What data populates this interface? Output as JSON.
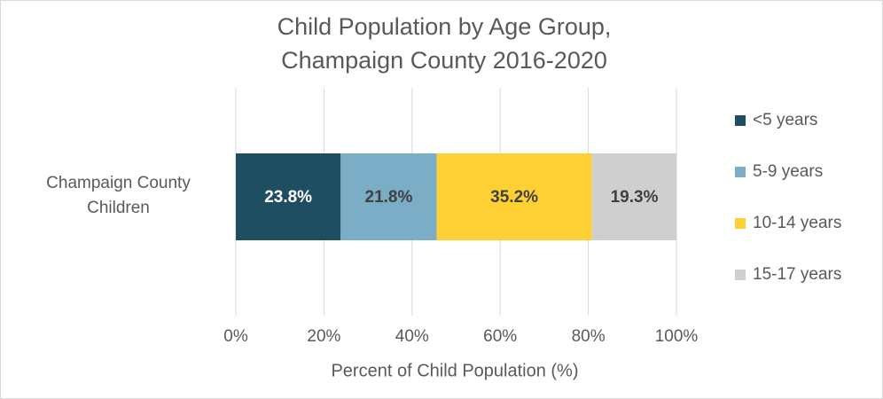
{
  "chart_data": {
    "type": "stacked_bar_horizontal",
    "title": "Child Population by Age Group, Champaign County 2016-2020",
    "x_label": "Percent of Child Population (%)",
    "categories": [
      "Champaign County Children"
    ],
    "series": [
      {
        "name": "<5 years",
        "color": "#1f4e63",
        "values": [
          23.8
        ],
        "value_labels": [
          "23.8%"
        ]
      },
      {
        "name": "5-9 years",
        "color": "#7badc6",
        "values": [
          21.8
        ],
        "value_labels": [
          "21.8%"
        ]
      },
      {
        "name": "10-14 years",
        "color": "#ffd033",
        "values": [
          35.2
        ],
        "value_labels": [
          "35.2%"
        ]
      },
      {
        "name": "15-17 years",
        "color": "#d0cfcf",
        "values": [
          19.3
        ],
        "value_labels": [
          "19.3%"
        ]
      }
    ],
    "xlim": [
      0,
      100
    ],
    "xticks": [
      {
        "value": 0,
        "label": "0%"
      },
      {
        "value": 20,
        "label": "20%"
      },
      {
        "value": 40,
        "label": "40%"
      },
      {
        "value": 60,
        "label": "60%"
      },
      {
        "value": 80,
        "label": "80%"
      },
      {
        "value": 100,
        "label": "100%"
      }
    ],
    "grid": true,
    "legend": "right"
  }
}
